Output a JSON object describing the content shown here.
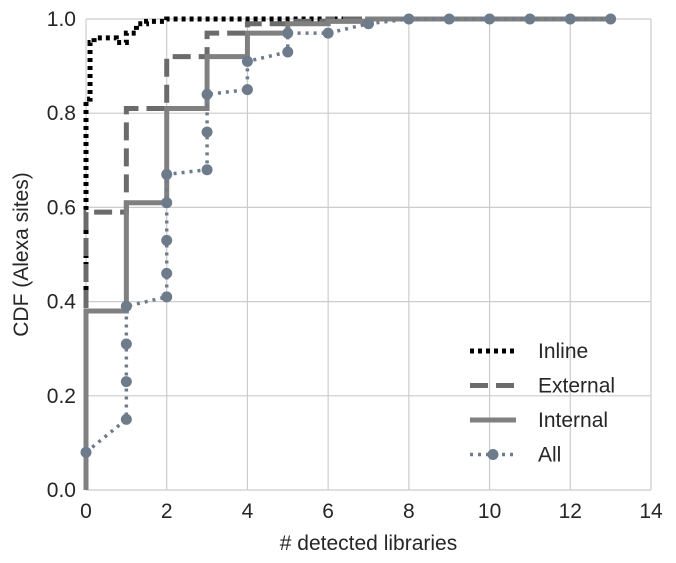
{
  "chart_data": {
    "type": "line",
    "xlabel": "# detected libraries",
    "ylabel": "CDF (Alexa sites)",
    "xlim": [
      0,
      14
    ],
    "ylim": [
      0.0,
      1.0
    ],
    "xticks": [
      0,
      2,
      4,
      6,
      8,
      10,
      12,
      14
    ],
    "yticks": [
      0.0,
      0.2,
      0.4,
      0.6,
      0.8,
      1.0
    ],
    "xtick_labels": [
      "0",
      "2",
      "4",
      "6",
      "8",
      "10",
      "12",
      "14"
    ],
    "ytick_labels": [
      "0.0",
      "0.2",
      "0.4",
      "0.6",
      "0.8",
      "1.0"
    ],
    "grid": true,
    "legend_position": "lower-right",
    "series": [
      {
        "name": "Inline",
        "style": "dotted",
        "color": "#000000",
        "x": [
          0,
          0.1,
          0.2,
          0.5,
          0.75,
          1.0,
          1.25,
          1.5,
          2,
          3,
          4,
          5,
          6,
          7,
          8,
          9,
          10,
          11,
          12,
          13
        ],
        "y": [
          0.83,
          0.95,
          0.96,
          0.96,
          0.95,
          0.97,
          0.99,
          0.995,
          1.0,
          1.0,
          1.0,
          1.0,
          1.0,
          1.0,
          1.0,
          1.0,
          1.0,
          1.0,
          1.0,
          1.0
        ]
      },
      {
        "name": "External",
        "style": "dashed",
        "color": "#6b6b6b",
        "x": [
          0,
          1,
          2,
          3,
          4,
          5,
          6,
          7,
          8,
          9,
          10,
          11,
          12,
          13
        ],
        "y": [
          0.59,
          0.81,
          0.92,
          0.97,
          0.99,
          0.995,
          1.0,
          1.0,
          1.0,
          1.0,
          1.0,
          1.0,
          1.0,
          1.0
        ]
      },
      {
        "name": "Internal",
        "style": "solid",
        "color": "#808080",
        "x": [
          0,
          1,
          2,
          3,
          4,
          5,
          6,
          7,
          8,
          9,
          10,
          11,
          12,
          13
        ],
        "y": [
          0.38,
          0.61,
          0.81,
          0.92,
          0.97,
          0.99,
          0.995,
          1.0,
          1.0,
          1.0,
          1.0,
          1.0,
          1.0,
          1.0
        ]
      },
      {
        "name": "All",
        "style": "dotted-markers",
        "color": "#6e7b8b",
        "points": [
          [
            0,
            0.08
          ],
          [
            1,
            0.15
          ],
          [
            1,
            0.23
          ],
          [
            1,
            0.31
          ],
          [
            1,
            0.39
          ],
          [
            2,
            0.41
          ],
          [
            2,
            0.46
          ],
          [
            2,
            0.53
          ],
          [
            2,
            0.61
          ],
          [
            2,
            0.67
          ],
          [
            3,
            0.68
          ],
          [
            3,
            0.76
          ],
          [
            3,
            0.84
          ],
          [
            4,
            0.85
          ],
          [
            4,
            0.91
          ],
          [
            5,
            0.93
          ],
          [
            5,
            0.97
          ],
          [
            6,
            0.97
          ],
          [
            7,
            0.99
          ],
          [
            8,
            1.0
          ],
          [
            9,
            1.0
          ],
          [
            10,
            1.0
          ],
          [
            11,
            1.0
          ],
          [
            12,
            1.0
          ],
          [
            13,
            1.0
          ]
        ]
      }
    ]
  }
}
